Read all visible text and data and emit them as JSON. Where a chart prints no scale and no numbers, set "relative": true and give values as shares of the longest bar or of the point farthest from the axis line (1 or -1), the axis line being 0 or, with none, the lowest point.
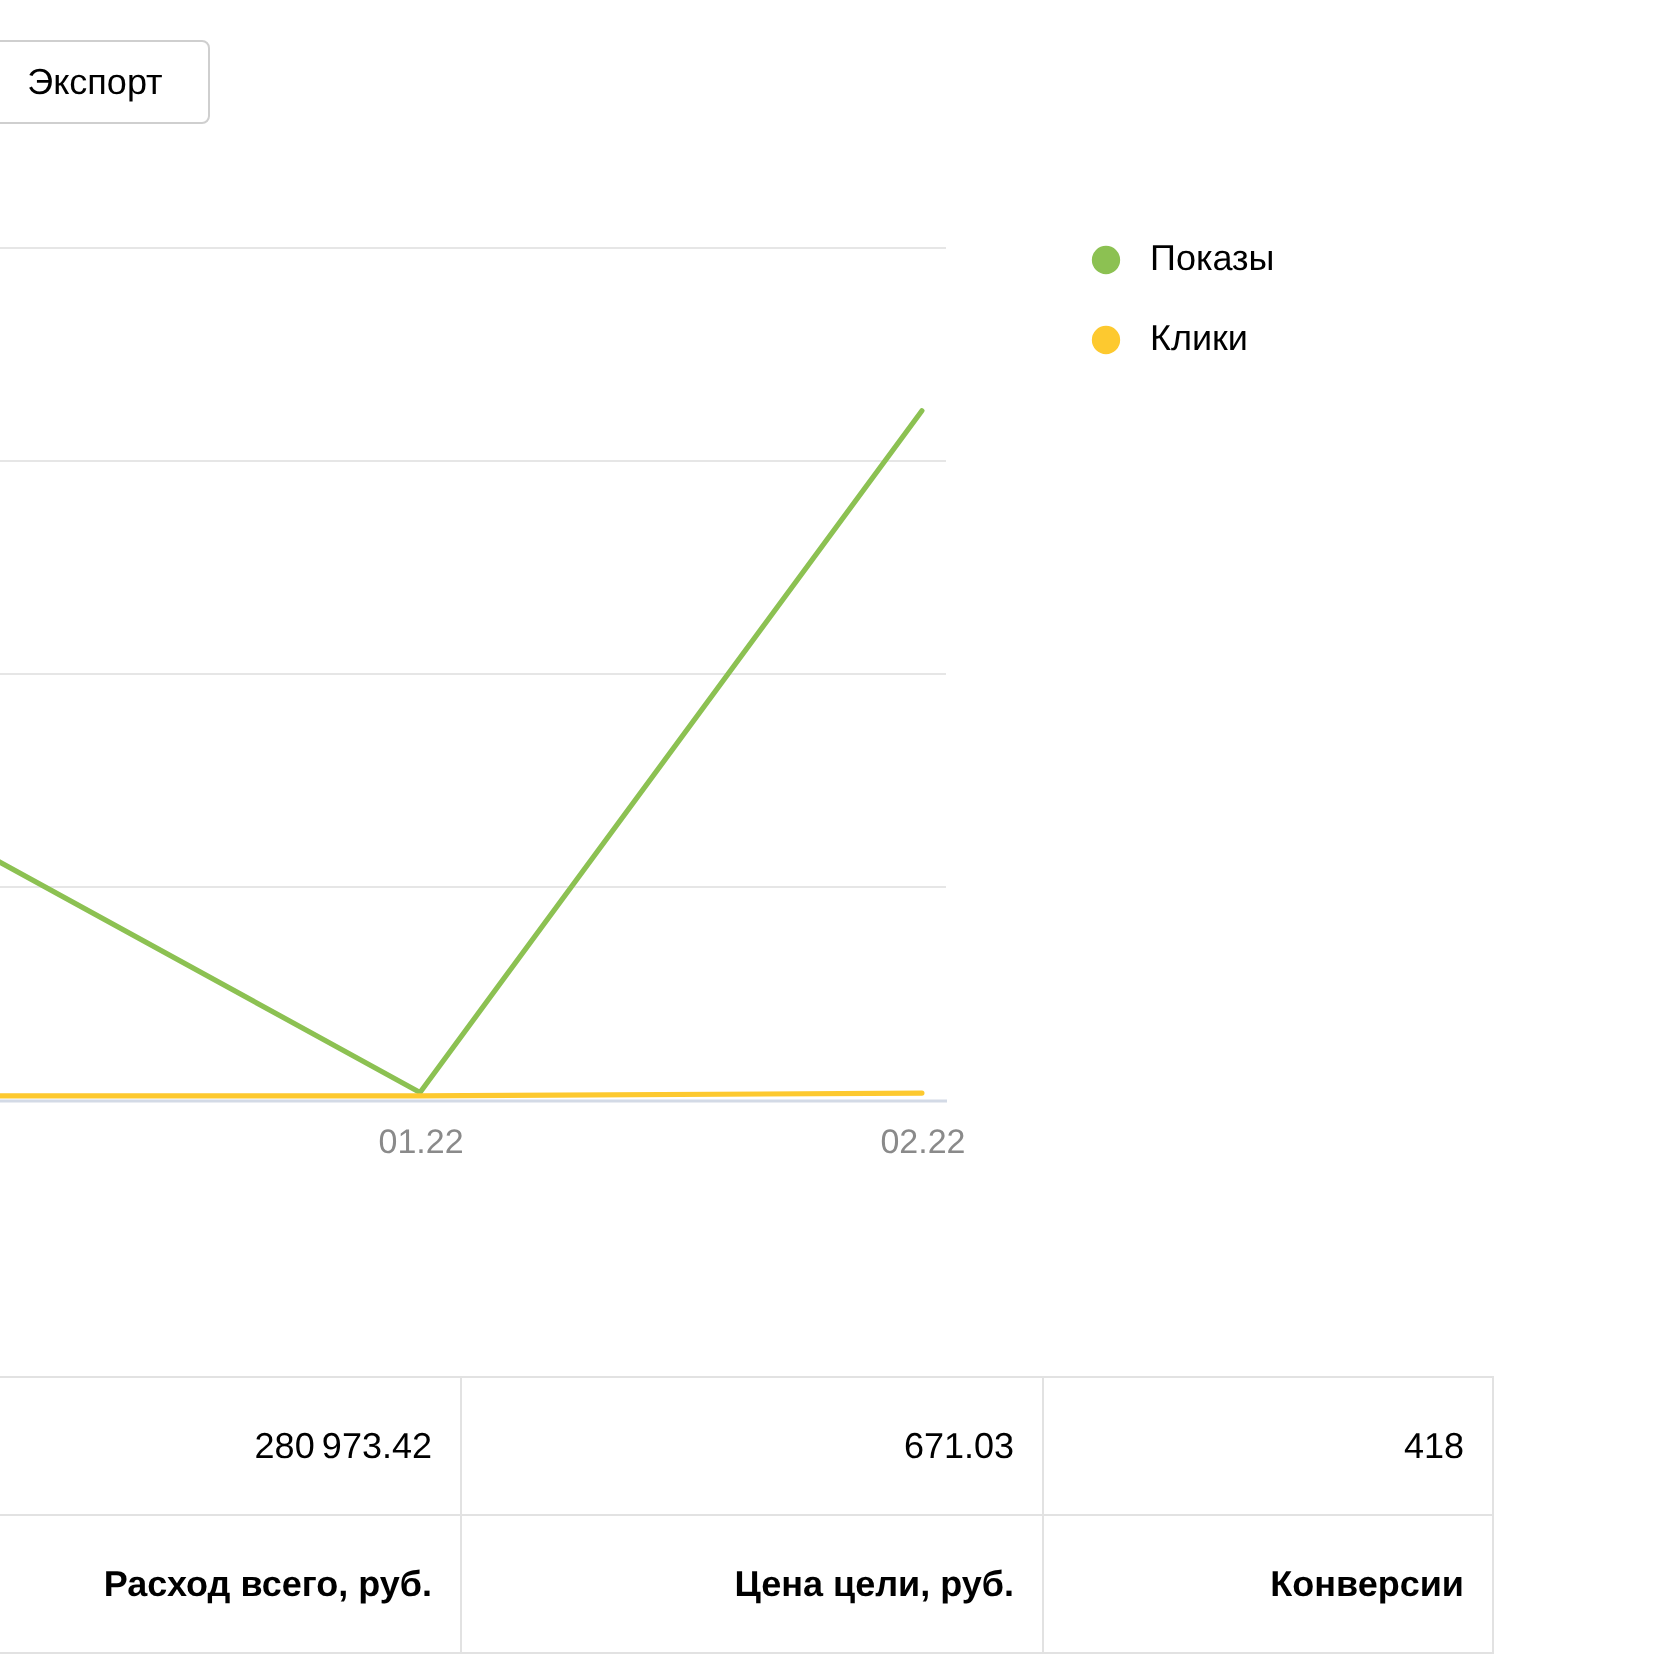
{
  "chart_data": [
    {
      "type": "line",
      "annotations": [
        "Экспорт"
      ],
      "categories": [
        null,
        "01.22",
        "02.22"
      ],
      "relative": true,
      "grid": "y",
      "legend": "top right",
      "series": [
        {
          "name": "Показы",
          "color": "#8cc152",
          "values": [
            0.41,
            0.011,
            1
          ]
        },
        {
          "name": "Клики",
          "color": "#fdc92f",
          "values": [
            0.006,
            0.006,
            0.01
          ]
        }
      ]
    },
    {
      "type": "other",
      "categories": [
        "Расход всего, руб.",
        "Цена цели, руб.",
        "Конверсии"
      ],
      "values": [
        280973.42,
        671.03,
        418
      ],
      "data_labels": true
    }
  ]
}
